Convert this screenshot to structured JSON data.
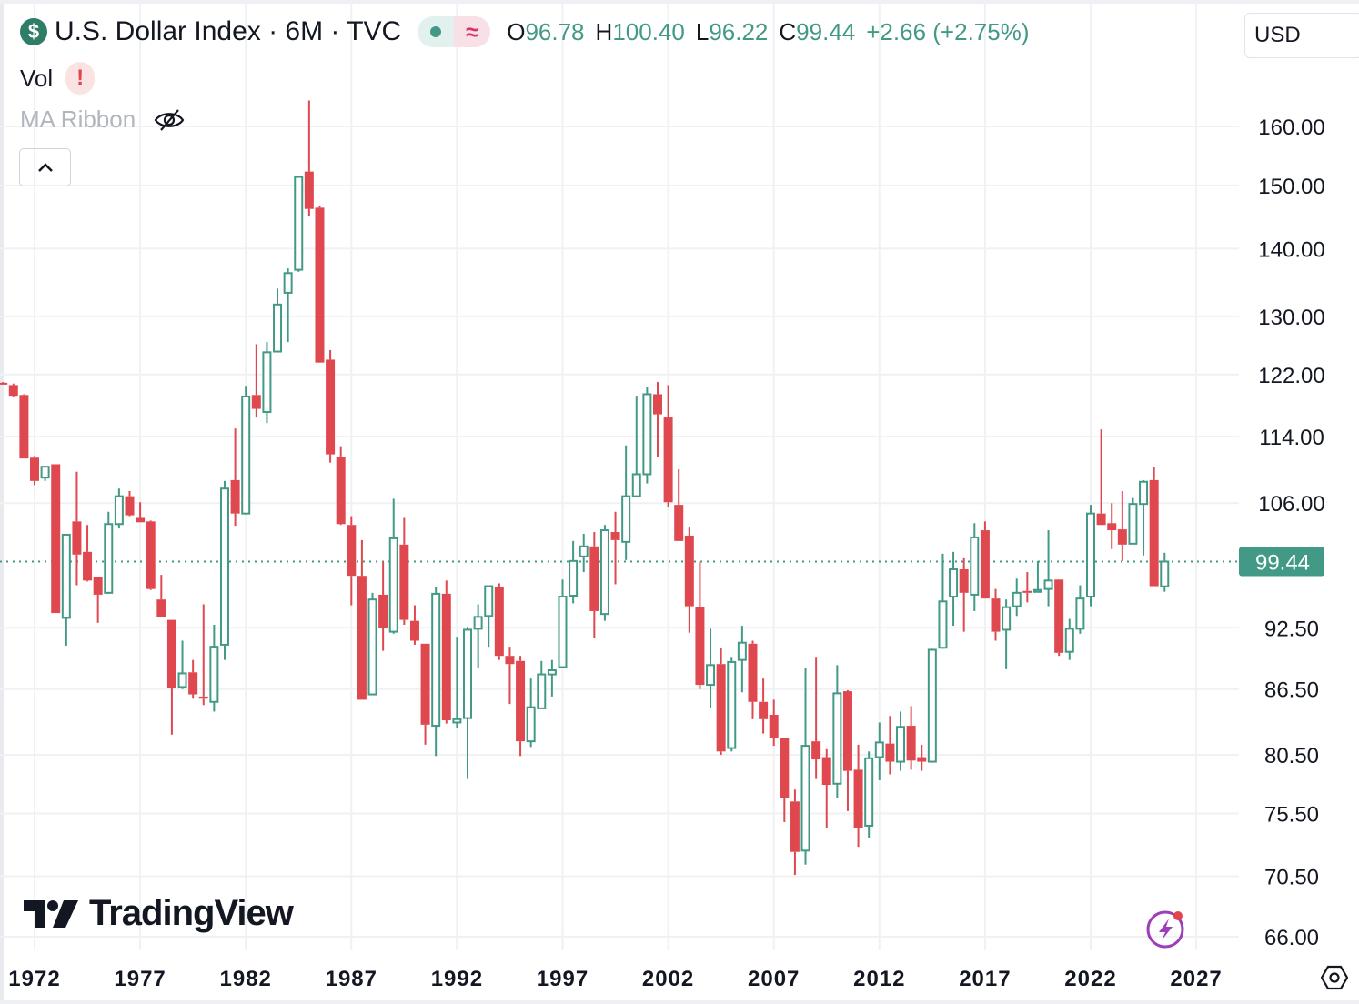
{
  "header": {
    "title": "U.S. Dollar Index · 6M · TVC",
    "symbol_icon": "dollar-icon",
    "open_label": "O",
    "open": "96.78",
    "high_label": "H",
    "high": "100.40",
    "low_label": "L",
    "low": "96.22",
    "close_label": "C",
    "close": "99.44",
    "change": "+2.66 (+2.75%)"
  },
  "indicators": {
    "vol_label": "Vol",
    "vol_warning": "!",
    "ma_label": "MA Ribbon"
  },
  "currency": "USD",
  "logo_text": "TradingView",
  "colors": {
    "up": "#429a86",
    "down": "#e04850",
    "grid": "#f0f1f3",
    "price_line": "#429a86"
  },
  "chart_data": {
    "type": "candlestick",
    "title": "U.S. Dollar Index · 6M · TVC",
    "interval": "6M",
    "scale": "log",
    "start_period": {
      "year": 1970,
      "half": 2
    },
    "ylim": [
      64.5,
      168
    ],
    "y_ticks": [
      "160.00",
      "150.00",
      "140.00",
      "130.00",
      "122.00",
      "114.00",
      "106.00",
      "92.50",
      "86.50",
      "80.50",
      "75.50",
      "70.50",
      "66.00"
    ],
    "x_ticks": [
      "1972",
      "1977",
      "1982",
      "1987",
      "1992",
      "1997",
      "2002",
      "2007",
      "2012",
      "2017",
      "2022",
      "2027"
    ],
    "last_price": "99.44",
    "grid": true,
    "candles_ohlc": [
      [
        120.9,
        121.0,
        120.7,
        120.8
      ],
      [
        120.6,
        120.8,
        119.0,
        119.2
      ],
      [
        119.3,
        119.4,
        111.3,
        111.3
      ],
      [
        111.4,
        111.6,
        108.1,
        108.6
      ],
      [
        109.0,
        110.3,
        108.6,
        110.3
      ],
      [
        110.6,
        110.6,
        94.0,
        94.0
      ],
      [
        93.5,
        102.4,
        90.7,
        102.4
      ],
      [
        103.9,
        109.7,
        96.9,
        100.2
      ],
      [
        100.5,
        103.5,
        97.3,
        97.4
      ],
      [
        97.8,
        97.8,
        93.0,
        95.9
      ],
      [
        96.1,
        105.0,
        96.0,
        103.6
      ],
      [
        103.6,
        107.7,
        103.1,
        106.8
      ],
      [
        106.8,
        107.4,
        104.5,
        104.6
      ],
      [
        104.3,
        106.1,
        103.8,
        103.8
      ],
      [
        103.9,
        104.0,
        96.4,
        96.5
      ],
      [
        95.4,
        98.0,
        93.6,
        93.6
      ],
      [
        93.3,
        93.3,
        82.3,
        86.6
      ],
      [
        86.7,
        91.2,
        86.5,
        88.0
      ],
      [
        88.1,
        89.3,
        85.6,
        86.0
      ],
      [
        85.8,
        94.9,
        85.0,
        85.6
      ],
      [
        85.3,
        92.8,
        84.4,
        90.6
      ],
      [
        90.8,
        108.6,
        89.3,
        107.7
      ],
      [
        108.7,
        115.0,
        103.4,
        104.8
      ],
      [
        104.8,
        120.5,
        104.8,
        119.1
      ],
      [
        119.3,
        126.1,
        116.4,
        117.5
      ],
      [
        117.1,
        126.4,
        115.7,
        125.0
      ],
      [
        125.1,
        134.0,
        125.1,
        131.7
      ],
      [
        133.4,
        137.0,
        126.4,
        136.3
      ],
      [
        136.8,
        151.4,
        136.5,
        151.4
      ],
      [
        152.3,
        164.6,
        145.0,
        146.2
      ],
      [
        146.4,
        146.6,
        123.6,
        123.6
      ],
      [
        124.0,
        125.3,
        110.8,
        111.8
      ],
      [
        111.5,
        112.8,
        103.5,
        103.6
      ],
      [
        103.5,
        104.5,
        94.8,
        97.9
      ],
      [
        97.9,
        101.8,
        85.5,
        85.5
      ],
      [
        86.0,
        96.1,
        86.0,
        95.4
      ],
      [
        95.9,
        99.4,
        90.2,
        92.5
      ],
      [
        92.1,
        106.5,
        91.9,
        102.0
      ],
      [
        101.3,
        104.3,
        92.8,
        93.3
      ],
      [
        93.2,
        94.8,
        90.8,
        91.2
      ],
      [
        90.9,
        90.9,
        81.4,
        83.2
      ],
      [
        83.1,
        96.7,
        80.4,
        96.0
      ],
      [
        96.0,
        97.4,
        83.3,
        83.6
      ],
      [
        83.4,
        91.6,
        82.9,
        83.7
      ],
      [
        83.8,
        92.6,
        78.4,
        92.3
      ],
      [
        92.4,
        94.9,
        88.5,
        93.6
      ],
      [
        93.7,
        96.8,
        90.6,
        96.8
      ],
      [
        96.7,
        97.1,
        89.3,
        89.7
      ],
      [
        89.7,
        90.6,
        85.1,
        88.9
      ],
      [
        89.2,
        89.7,
        80.4,
        81.7
      ],
      [
        81.7,
        87.5,
        81.2,
        84.8
      ],
      [
        84.7,
        89.2,
        84.7,
        87.9
      ],
      [
        87.9,
        89.3,
        85.8,
        88.3
      ],
      [
        88.6,
        97.5,
        88.5,
        95.7
      ],
      [
        95.8,
        101.7,
        95.0,
        99.5
      ],
      [
        100.0,
        102.5,
        98.3,
        101.1
      ],
      [
        101.1,
        102.7,
        91.5,
        94.2
      ],
      [
        93.9,
        103.5,
        93.2,
        102.9
      ],
      [
        102.7,
        105.0,
        97.0,
        101.8
      ],
      [
        101.6,
        112.9,
        99.6,
        106.8
      ],
      [
        106.8,
        119.2,
        106.8,
        109.4
      ],
      [
        109.4,
        120.4,
        108.3,
        119.4
      ],
      [
        119.4,
        121.0,
        111.5,
        116.8
      ],
      [
        116.4,
        120.6,
        105.5,
        106.1
      ],
      [
        105.8,
        110.0,
        101.7,
        101.7
      ],
      [
        102.3,
        103.2,
        92.0,
        94.7
      ],
      [
        94.6,
        99.4,
        86.5,
        86.9
      ],
      [
        86.9,
        92.4,
        84.7,
        88.8
      ],
      [
        88.9,
        90.5,
        80.5,
        80.8
      ],
      [
        81.1,
        89.6,
        80.8,
        89.1
      ],
      [
        89.3,
        92.7,
        86.2,
        91.0
      ],
      [
        90.9,
        91.2,
        83.7,
        85.3
      ],
      [
        85.3,
        87.5,
        82.4,
        83.7
      ],
      [
        84.1,
        85.5,
        81.3,
        82.0
      ],
      [
        82.0,
        82.0,
        74.8,
        76.8
      ],
      [
        76.5,
        77.5,
        70.6,
        72.4
      ],
      [
        72.5,
        88.5,
        71.4,
        81.3
      ],
      [
        81.7,
        89.6,
        78.4,
        80.1
      ],
      [
        80.3,
        81.0,
        74.3,
        77.9
      ],
      [
        78.0,
        88.8,
        76.8,
        86.1
      ],
      [
        86.3,
        86.4,
        75.7,
        79.1
      ],
      [
        79.2,
        81.4,
        72.8,
        74.3
      ],
      [
        74.5,
        80.8,
        73.5,
        80.2
      ],
      [
        80.3,
        83.4,
        78.3,
        81.6
      ],
      [
        81.5,
        84.0,
        78.8,
        79.9
      ],
      [
        79.9,
        84.4,
        79.1,
        83.0
      ],
      [
        83.1,
        84.9,
        79.2,
        80.0
      ],
      [
        80.3,
        81.4,
        79.1,
        79.9
      ],
      [
        79.9,
        90.4,
        79.9,
        90.3
      ],
      [
        90.5,
        100.3,
        90.4,
        95.2
      ],
      [
        95.7,
        100.5,
        92.7,
        98.6
      ],
      [
        98.6,
        99.8,
        92.1,
        96.1
      ],
      [
        95.9,
        103.7,
        94.2,
        102.1
      ],
      [
        102.9,
        103.9,
        95.5,
        95.5
      ],
      [
        95.5,
        96.5,
        91.2,
        92.1
      ],
      [
        92.3,
        95.4,
        88.4,
        94.6
      ],
      [
        94.7,
        97.6,
        93.7,
        96.1
      ],
      [
        96.3,
        98.3,
        95.1,
        96.1
      ],
      [
        96.2,
        99.5,
        96.2,
        96.4
      ],
      [
        96.5,
        102.9,
        94.7,
        97.4
      ],
      [
        97.5,
        97.5,
        89.7,
        90.0
      ],
      [
        90.1,
        93.4,
        89.3,
        92.4
      ],
      [
        92.4,
        96.9,
        91.9,
        95.5
      ],
      [
        95.7,
        105.8,
        94.7,
        104.8
      ],
      [
        104.8,
        114.9,
        103.5,
        103.5
      ],
      [
        103.7,
        106.0,
        100.8,
        102.9
      ],
      [
        103.0,
        107.4,
        99.5,
        101.3
      ],
      [
        101.4,
        106.6,
        101.4,
        105.9
      ],
      [
        105.9,
        108.7,
        100.1,
        108.5
      ],
      [
        108.7,
        110.3,
        96.8,
        96.8
      ],
      [
        96.78,
        100.4,
        96.22,
        99.44
      ]
    ]
  }
}
